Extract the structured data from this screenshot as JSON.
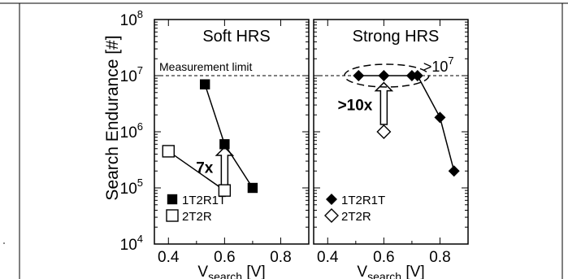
{
  "figure": {
    "ylabel": "Search Endurance [#]",
    "xlabel_main": "V",
    "xlabel_sub": "search",
    "xlabel_unit": "[V]",
    "measurement_limit_label": "Measurement limit",
    "y_tick_base": "10",
    "y_tick_exponents": [
      "4",
      "5",
      "6",
      "7",
      "8"
    ]
  },
  "chart_data": [
    {
      "type": "scatter",
      "title": "Soft HRS",
      "xlim": [
        0.35,
        0.9
      ],
      "ylim": [
        10000,
        100000000
      ],
      "yscale": "log",
      "x_ticks": [
        "0.4",
        "0.6",
        "0.8"
      ],
      "grid": false,
      "legend_placement": "bottom-left",
      "series": [
        {
          "name": "1T2R1T",
          "marker": "filled-square",
          "color": "#000000",
          "x": [
            0.53,
            0.6,
            0.7
          ],
          "y": [
            7000000,
            600000,
            100000
          ]
        },
        {
          "name": "2T2R",
          "marker": "open-square",
          "color": "#000000",
          "x": [
            0.4,
            0.6
          ],
          "y": [
            450000,
            90000
          ]
        }
      ],
      "reference_line": {
        "y": 10000000,
        "style": "dashed"
      },
      "annotations": [
        {
          "text": "7x",
          "type": "arrow-up",
          "x": 0.6,
          "from": 110000,
          "to": 530000
        }
      ]
    },
    {
      "type": "scatter",
      "title": "Strong HRS",
      "xlim": [
        0.35,
        0.9
      ],
      "ylim": [
        10000,
        100000000
      ],
      "yscale": "log",
      "x_ticks": [
        "0.4",
        "0.6",
        "0.8"
      ],
      "grid": false,
      "legend_placement": "bottom-left",
      "series": [
        {
          "name": "1T2R1T",
          "marker": "filled-diamond",
          "color": "#000000",
          "x": [
            0.51,
            0.6,
            0.7,
            0.72,
            0.8,
            0.85
          ],
          "y": [
            10000000,
            10000000,
            10000000,
            10000000,
            1800000,
            200000
          ]
        },
        {
          "name": "2T2R",
          "marker": "open-diamond",
          "color": "#000000",
          "x": [
            0.6
          ],
          "y": [
            1000000
          ]
        }
      ],
      "reference_line": {
        "y": 10000000,
        "style": "dashed"
      },
      "annotations": [
        {
          "text": ">10x",
          "type": "arrow-up",
          "x": 0.6,
          "from": 1350000,
          "to": 7500000
        },
        {
          "text": ">10",
          "superscript": "7",
          "type": "ellipse",
          "x_center": 0.61,
          "y_center": 10000000
        }
      ]
    }
  ]
}
